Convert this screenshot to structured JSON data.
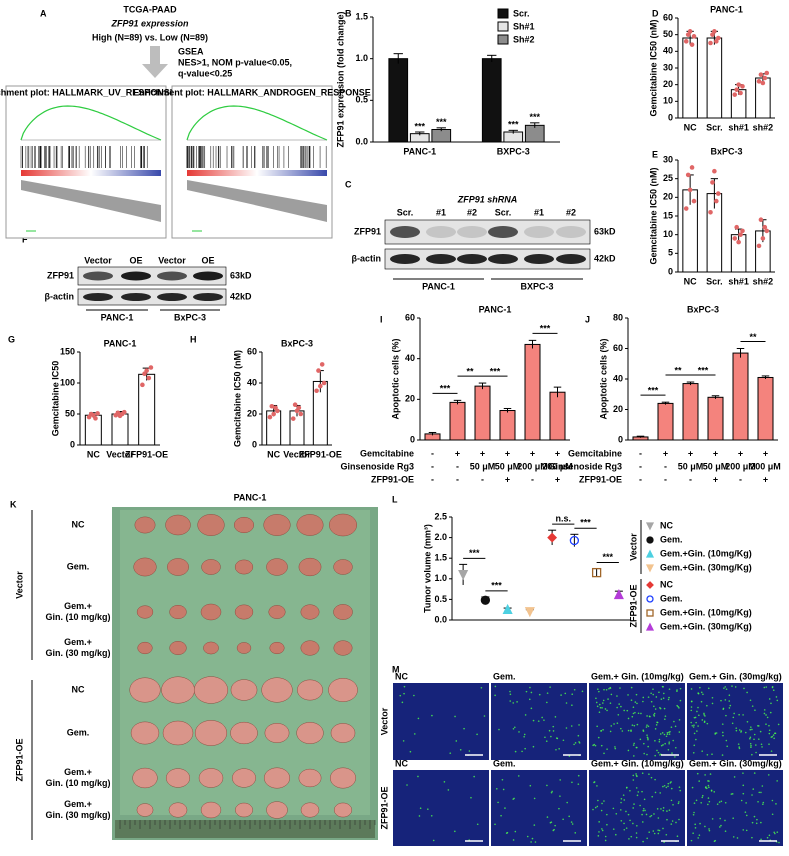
{
  "panel_labels": [
    "A",
    "B",
    "C",
    "D",
    "E",
    "F",
    "G",
    "H",
    "I",
    "J",
    "K",
    "L",
    "M"
  ],
  "gsea": {
    "header": [
      "TCGA-PAAD",
      "ZFP91 expression",
      "High (N=89) vs. Low (N=89)"
    ],
    "method": [
      "GSEA",
      "NES>1, NOM p-value<0.05,",
      "q-value<0.25"
    ],
    "plots": [
      "Enrichment plot: HALLMARK_UV_RESPONSE_DN",
      "Enrichment plot: HALLMARK_ANDROGEN_RESPONSE"
    ]
  },
  "blot_c": {
    "title": "ZFP91 shRNA",
    "lanes": [
      "Scr.",
      "#1",
      "#2",
      "Scr.",
      "#1",
      "#2"
    ],
    "rows": [
      "ZFP91",
      "β-actin"
    ],
    "sizes": [
      "63kD",
      "42kD"
    ],
    "groups": [
      "PANC-1",
      "BXPC-3"
    ]
  },
  "blot_f": {
    "lanes": [
      "Vector",
      "OE",
      "Vector",
      "OE"
    ],
    "rows": [
      "ZFP91",
      "β-actin"
    ],
    "sizes": [
      "63kD",
      "42kD"
    ],
    "groups": [
      "PANC-1",
      "BxPC-3"
    ]
  },
  "tumor_photo": {
    "title": "PANC-1",
    "groups": [
      "Vector",
      "ZFP91-OE"
    ],
    "rows": [
      [
        "NC"
      ],
      [
        "Gem."
      ],
      [
        "Gem.+",
        "Gin. (10 mg/kg)"
      ],
      [
        "Gem.+",
        "Gin. (30 mg/kg)"
      ],
      [
        "NC"
      ],
      [
        "Gem."
      ],
      [
        "Gem.+",
        "Gin. (10 mg/kg)"
      ],
      [
        "Gem.+",
        "Gin. (30 mg/kg)"
      ]
    ]
  },
  "ihc": {
    "columns": [
      "NC",
      "Gem.",
      "Gem.+ Gin. (10mg/kg)",
      "Gem.+ Gin. (30mg/kg)"
    ],
    "rows": [
      "Vector",
      "ZFP91-OE"
    ]
  },
  "chart_data": [
    {
      "type": "grouped_bar",
      "categories": [
        "PANC-1",
        "BXPC-3"
      ],
      "ylabel": "ZFP91 expression (fold change)",
      "ylim": [
        0,
        1.5
      ],
      "yticks": [
        {
          "value": 0,
          "label": "0.0"
        },
        0.5,
        {
          "value": 1,
          "label": "1.0"
        },
        1.5
      ],
      "series": [
        {
          "name": "Scr.",
          "color": "#111111",
          "values": [
            1.0,
            1.0
          ],
          "errors": [
            0.06,
            0.04
          ]
        },
        {
          "name": "Sh#1",
          "color": "#e6e6e6",
          "values": [
            0.1,
            0.12
          ],
          "errors": [
            0.02,
            0.02
          ]
        },
        {
          "name": "Sh#2",
          "color": "#8c8c8c",
          "values": [
            0.15,
            0.2
          ],
          "errors": [
            0.02,
            0.03
          ]
        }
      ],
      "annotations": [
        "***",
        "***",
        "***",
        "***"
      ]
    },
    {
      "type": "bar",
      "title": "PANC-1",
      "categories": [
        "NC",
        "Scr.",
        "sh#1",
        "sh#2"
      ],
      "ylabel": "Gemcitabine IC50 (nM)",
      "values": [
        48,
        48,
        17,
        24
      ],
      "errors": [
        4,
        4,
        3,
        2.5
      ],
      "points": [
        [
          46,
          50,
          52,
          44,
          49
        ],
        [
          45,
          50,
          52,
          46,
          48
        ],
        [
          14,
          17,
          20,
          15,
          19
        ],
        [
          22,
          26,
          21,
          24,
          27
        ]
      ],
      "color": "#ffffff",
      "point_color": "#e06666",
      "ylim": [
        0,
        60
      ],
      "yticks": [
        0,
        10,
        20,
        30,
        40,
        50,
        60
      ]
    },
    {
      "type": "bar",
      "title": "BxPC-3",
      "categories": [
        "NC",
        "Scr.",
        "sh#1",
        "sh#2"
      ],
      "ylabel": "Gemcitabine IC50 (nM)",
      "values": [
        22,
        21,
        10,
        11
      ],
      "errors": [
        4,
        4,
        1.5,
        3
      ],
      "points": [
        [
          17,
          26,
          22,
          28,
          19
        ],
        [
          16,
          24,
          27,
          19,
          21
        ],
        [
          9,
          12,
          8,
          10,
          11
        ],
        [
          7,
          14,
          9,
          12,
          11
        ]
      ],
      "color": "#ffffff",
      "point_color": "#e06666",
      "ylim": [
        0,
        30
      ],
      "yticks": [
        0,
        5,
        10,
        15,
        20,
        25,
        30
      ]
    },
    {
      "type": "bar",
      "title": "PANC-1",
      "categories": [
        "NC",
        "Vector",
        "ZFP91-OE"
      ],
      "ylabel": "Gemcitabine IC50",
      "values": [
        48,
        50,
        114
      ],
      "errors": [
        4,
        4,
        10
      ],
      "points": [
        [
          45,
          50,
          48,
          43,
          51
        ],
        [
          48,
          52,
          47,
          50,
          53
        ],
        [
          97,
          115,
          120,
          108,
          125
        ]
      ],
      "color": "#ffffff",
      "point_color": "#e06666",
      "ylim": [
        0,
        150
      ],
      "yticks": [
        0,
        50,
        100,
        150
      ]
    },
    {
      "type": "bar",
      "title": "BxPC-3",
      "categories": [
        "NC",
        "Vector",
        "ZFP91-OE"
      ],
      "ylabel": "Gemcitabine IC50 (nM)",
      "values": [
        22,
        22,
        41
      ],
      "errors": [
        3.5,
        3.5,
        7
      ],
      "points": [
        [
          18,
          25,
          20,
          24,
          22
        ],
        [
          17,
          26,
          22,
          24,
          20
        ],
        [
          35,
          48,
          38,
          52,
          40
        ]
      ],
      "color": "#ffffff",
      "point_color": "#e06666",
      "ylim": [
        0,
        60
      ],
      "yticks": [
        0,
        20,
        40,
        60
      ]
    },
    {
      "type": "bar",
      "title": "PANC-1",
      "ylabel": "Apoptotic cells (%)",
      "values": [
        3,
        18.5,
        26.5,
        14.5,
        47,
        23.5
      ],
      "errors": [
        0.7,
        1,
        1.5,
        1,
        2,
        2.5
      ],
      "color": "#f4837d",
      "ylim": [
        0,
        60
      ],
      "yticks": [
        0,
        20,
        40,
        60
      ],
      "conditions": [
        {
          "name": "Gemcitabine",
          "values": [
            "-",
            "+",
            "+",
            "+",
            "+",
            "+"
          ]
        },
        {
          "name": "Ginsenoside Rg3",
          "values": [
            "-",
            "-",
            "50 μM",
            "50 μM",
            "200 μM",
            "200 μM"
          ]
        },
        {
          "name": "ZFP91-OE",
          "values": [
            "-",
            "-",
            "-",
            "+",
            "-",
            "+"
          ]
        }
      ],
      "annotations": [
        "***",
        "**",
        "***",
        "***"
      ]
    },
    {
      "type": "bar",
      "title": "BxPC-3",
      "ylabel": "Apoptotic cells (%)",
      "values": [
        2,
        24,
        37,
        28,
        57,
        41
      ],
      "errors": [
        0.5,
        0.8,
        1,
        1,
        3,
        1
      ],
      "color": "#f4837d",
      "ylim": [
        0,
        80
      ],
      "yticks": [
        0,
        20,
        40,
        60,
        80
      ],
      "conditions": [
        {
          "name": "Gemcitabine",
          "values": [
            "-",
            "+",
            "+",
            "+",
            "+",
            "+"
          ]
        },
        {
          "name": "Ginsenoside Rg3",
          "values": [
            "-",
            "-",
            "50 μM",
            "50 μM",
            "200 μM",
            "200 μM"
          ]
        },
        {
          "name": "ZFP91-OE",
          "values": [
            "-",
            "-",
            "-",
            "+",
            "-",
            "+"
          ]
        }
      ],
      "annotations": [
        "***",
        "**",
        "***",
        "**"
      ]
    },
    {
      "type": "dot",
      "ylabel": "Tumor volume (mm³)",
      "ylim": [
        0,
        2.5
      ],
      "yticks": [
        {
          "value": 0,
          "label": "0.0"
        },
        0.5,
        {
          "value": 1,
          "label": "1.0"
        },
        1.5,
        {
          "value": 2,
          "label": "2.0"
        },
        2.5
      ],
      "legend_groups": [
        "Vector",
        "ZFP91-OE"
      ],
      "series": [
        {
          "name": "NC",
          "group": "Vector",
          "marker": "triangle-down",
          "color": "#a6a6a6",
          "values": [
            1.1
          ],
          "errors": [
            0.25
          ]
        },
        {
          "name": "Gem.",
          "group": "Vector",
          "marker": "circle",
          "color": "#111111",
          "values": [
            0.48
          ],
          "errors": [
            0.08
          ]
        },
        {
          "name": "Gem.+Gin. (10mg/Kg)",
          "group": "Vector",
          "marker": "triangle-up",
          "color": "#4dd0e1",
          "values": [
            0.26
          ],
          "errors": [
            0.03
          ]
        },
        {
          "name": "Gem.+Gin. (30mg/Kg)",
          "group": "Vector",
          "marker": "triangle-down",
          "color": "#f2c38f",
          "values": [
            0.2
          ],
          "errors": [
            0.05
          ]
        },
        {
          "name": "NC",
          "group": "ZFP91-OE",
          "marker": "diamond",
          "color": "#e53935",
          "values": [
            2.0
          ],
          "errors": [
            0.18
          ]
        },
        {
          "name": "Gem.",
          "group": "ZFP91-OE",
          "marker": "circle-open",
          "color": "#1e40ff",
          "values": [
            1.93
          ],
          "errors": [
            0.15
          ]
        },
        {
          "name": "Gem.+Gin. (10mg/Kg)",
          "group": "ZFP91-OE",
          "marker": "square-open",
          "color": "#a0662a",
          "values": [
            1.15
          ],
          "errors": [
            0.1
          ]
        },
        {
          "name": "Gem.+Gin. (30mg/Kg)",
          "group": "ZFP91-OE",
          "marker": "triangle-up",
          "color": "#b43cd8",
          "values": [
            0.62
          ],
          "errors": [
            0.08
          ]
        }
      ],
      "annotations": [
        "***",
        "***",
        "n.s.",
        "***",
        "***"
      ]
    }
  ]
}
